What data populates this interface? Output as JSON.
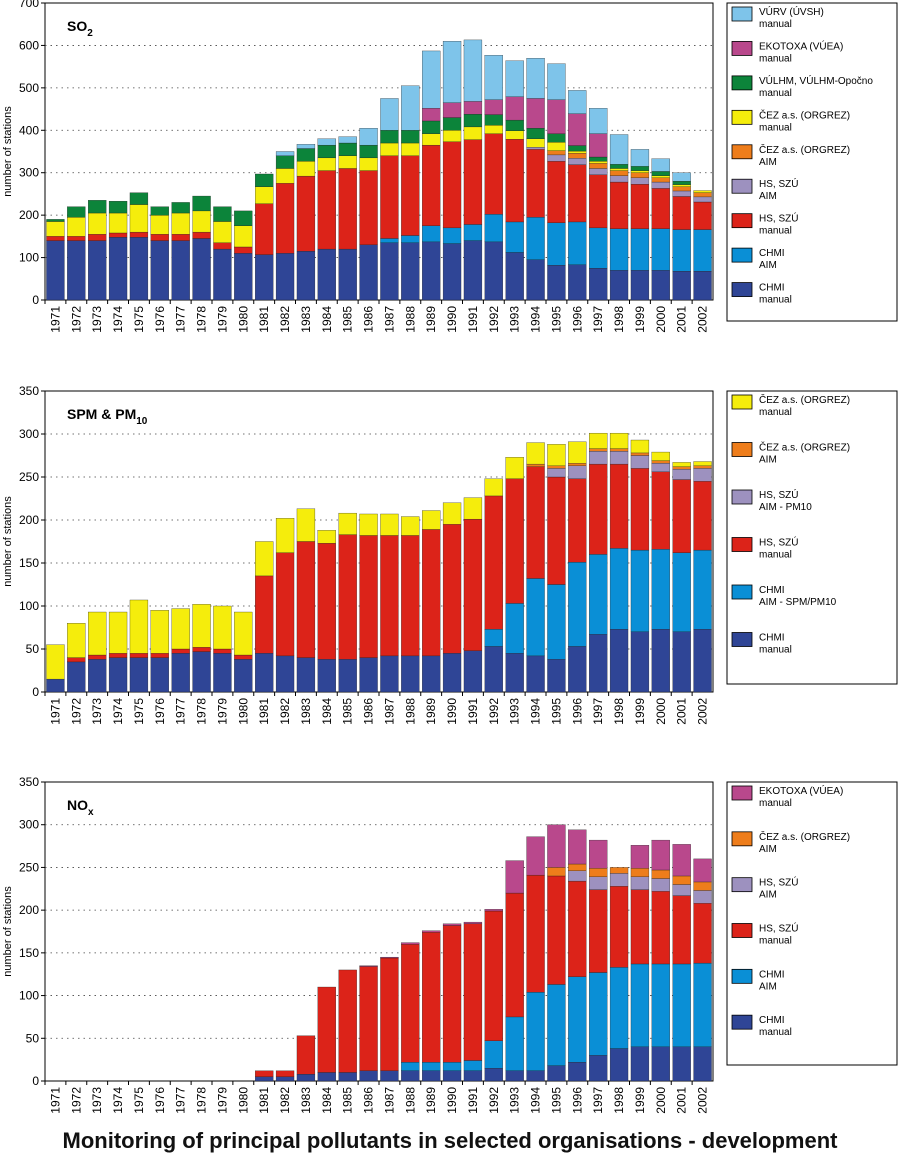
{
  "footer_title": "Monitoring of principal pollutants in selected organisations - development",
  "chart_data": [
    {
      "type": "bar",
      "stacked": true,
      "title": "SO2",
      "ylabel": "number of stations",
      "ylim": [
        0,
        700
      ],
      "yticks": [
        0,
        100,
        200,
        300,
        400,
        500,
        600,
        700
      ],
      "grid": true,
      "legend_position": "right",
      "categories": [
        "1971",
        "1972",
        "1973",
        "1974",
        "1975",
        "1976",
        "1977",
        "1978",
        "1979",
        "1980",
        "1981",
        "1982",
        "1983",
        "1984",
        "1985",
        "1986",
        "1987",
        "1988",
        "1989",
        "1990",
        "1991",
        "1992",
        "1993",
        "1994",
        "1995",
        "1996",
        "1997",
        "1998",
        "1999",
        "2000",
        "2001",
        "2002"
      ],
      "series": [
        {
          "name": "CHMI manual",
          "color": "#2f4596",
          "values": [
            140,
            140,
            140,
            148,
            148,
            140,
            140,
            145,
            120,
            110,
            107,
            110,
            115,
            120,
            120,
            130,
            135,
            135,
            137,
            133,
            140,
            137,
            112,
            95,
            82,
            83,
            75,
            70,
            70,
            70,
            68,
            68
          ]
        },
        {
          "name": "CHMI AIM",
          "color": "#0a8fd6",
          "values": [
            0,
            0,
            0,
            0,
            0,
            0,
            0,
            0,
            0,
            0,
            0,
            0,
            0,
            0,
            0,
            0,
            10,
            17,
            38,
            37,
            38,
            65,
            72,
            100,
            100,
            101,
            95,
            98,
            98,
            98,
            98,
            98
          ]
        },
        {
          "name": "HS, SZÚ manual",
          "color": "#dc2319",
          "values": [
            10,
            10,
            15,
            10,
            12,
            15,
            15,
            15,
            15,
            15,
            120,
            165,
            177,
            185,
            190,
            175,
            195,
            188,
            190,
            203,
            200,
            190,
            195,
            160,
            145,
            135,
            125,
            110,
            105,
            95,
            78,
            65
          ]
        },
        {
          "name": "HS, SZÚ AIM",
          "color": "#9d91bf",
          "values": [
            0,
            0,
            0,
            0,
            0,
            0,
            0,
            0,
            0,
            0,
            0,
            0,
            0,
            0,
            0,
            0,
            0,
            0,
            0,
            0,
            0,
            0,
            0,
            5,
            15,
            15,
            15,
            15,
            15,
            15,
            13,
            12
          ]
        },
        {
          "name": "ČEZ a.s. (ORGREZ) AIM",
          "color": "#ee7d1b",
          "values": [
            0,
            0,
            0,
            0,
            0,
            0,
            0,
            0,
            0,
            0,
            0,
            0,
            0,
            0,
            0,
            0,
            0,
            0,
            0,
            0,
            0,
            0,
            0,
            0,
            10,
            12,
            12,
            12,
            12,
            10,
            10,
            10
          ]
        },
        {
          "name": "ČEZ a.s. (ORGREZ) manual",
          "color": "#f5ed0c",
          "values": [
            35,
            45,
            50,
            47,
            65,
            45,
            50,
            50,
            50,
            50,
            40,
            35,
            35,
            30,
            30,
            30,
            30,
            30,
            27,
            27,
            30,
            20,
            20,
            20,
            20,
            5,
            5,
            5,
            5,
            5,
            5,
            5
          ]
        },
        {
          "name": "VÚLHM, VÚLHM-Opočno manual",
          "color": "#0c843a",
          "values": [
            5,
            25,
            30,
            28,
            28,
            20,
            25,
            35,
            35,
            35,
            30,
            30,
            30,
            30,
            30,
            30,
            30,
            30,
            30,
            30,
            30,
            25,
            25,
            25,
            20,
            13,
            10,
            10,
            10,
            10,
            8,
            0
          ]
        },
        {
          "name": "EKOTOXA (VÚEA) manual",
          "color": "#b9488c",
          "values": [
            0,
            0,
            0,
            0,
            0,
            0,
            0,
            0,
            0,
            0,
            0,
            0,
            0,
            0,
            0,
            0,
            0,
            0,
            30,
            35,
            30,
            35,
            55,
            70,
            80,
            75,
            55,
            0,
            0,
            0,
            0,
            0
          ]
        },
        {
          "name": "VÚRV (ÚVSH) manual",
          "color": "#7ec4ea",
          "values": [
            0,
            0,
            0,
            0,
            0,
            0,
            0,
            0,
            0,
            0,
            0,
            10,
            10,
            15,
            15,
            40,
            75,
            105,
            135,
            145,
            145,
            105,
            85,
            95,
            85,
            55,
            60,
            70,
            40,
            30,
            20,
            0
          ]
        }
      ]
    },
    {
      "type": "bar",
      "stacked": true,
      "title": "SPM & PM10",
      "ylabel": "number of stations",
      "ylim": [
        0,
        350
      ],
      "yticks": [
        0,
        50,
        100,
        150,
        200,
        250,
        300,
        350
      ],
      "grid": true,
      "legend_position": "right",
      "categories": [
        "1971",
        "1972",
        "1973",
        "1974",
        "1975",
        "1976",
        "1977",
        "1978",
        "1979",
        "1980",
        "1981",
        "1982",
        "1983",
        "1984",
        "1985",
        "1986",
        "1987",
        "1988",
        "1989",
        "1990",
        "1991",
        "1992",
        "1993",
        "1994",
        "1995",
        "1996",
        "1997",
        "1998",
        "1999",
        "2000",
        "2001",
        "2002"
      ],
      "series": [
        {
          "name": "CHMI manual",
          "color": "#2f4596",
          "values": [
            15,
            35,
            38,
            40,
            40,
            40,
            45,
            47,
            45,
            38,
            45,
            42,
            40,
            38,
            38,
            40,
            42,
            42,
            42,
            45,
            48,
            53,
            45,
            42,
            38,
            53,
            67,
            73,
            70,
            73,
            70,
            73
          ]
        },
        {
          "name": "CHMI AIM - SPM/PM10",
          "color": "#0a8fd6",
          "values": [
            0,
            0,
            0,
            0,
            0,
            0,
            0,
            0,
            0,
            0,
            0,
            0,
            0,
            0,
            0,
            0,
            0,
            0,
            0,
            0,
            0,
            20,
            58,
            90,
            87,
            98,
            93,
            94,
            95,
            93,
            92,
            92
          ]
        },
        {
          "name": "HS, SZÚ manual",
          "color": "#dc2319",
          "values": [
            0,
            5,
            5,
            5,
            5,
            5,
            5,
            5,
            5,
            5,
            90,
            120,
            135,
            135,
            145,
            142,
            140,
            140,
            147,
            150,
            153,
            155,
            145,
            130,
            125,
            97,
            105,
            98,
            95,
            90,
            85,
            80
          ]
        },
        {
          "name": "HS, SZÚ AIM - PM10",
          "color": "#9d91bf",
          "values": [
            0,
            0,
            0,
            0,
            0,
            0,
            0,
            0,
            0,
            0,
            0,
            0,
            0,
            0,
            0,
            0,
            0,
            0,
            0,
            0,
            0,
            0,
            0,
            0,
            10,
            15,
            15,
            15,
            15,
            10,
            12,
            15
          ]
        },
        {
          "name": "ČEZ a.s. (ORGREZ) AIM",
          "color": "#ee7d1b",
          "values": [
            0,
            0,
            0,
            0,
            0,
            0,
            0,
            0,
            0,
            0,
            0,
            0,
            0,
            0,
            0,
            0,
            0,
            0,
            0,
            0,
            0,
            0,
            0,
            3,
            3,
            3,
            3,
            3,
            3,
            3,
            3,
            3
          ]
        },
        {
          "name": "ČEZ a.s. (ORGREZ) manual",
          "color": "#f5ed0c",
          "values": [
            40,
            40,
            50,
            48,
            62,
            50,
            47,
            50,
            50,
            50,
            40,
            40,
            38,
            15,
            25,
            25,
            25,
            22,
            22,
            25,
            25,
            20,
            25,
            25,
            25,
            25,
            18,
            18,
            15,
            10,
            5,
            5
          ]
        }
      ]
    },
    {
      "type": "bar",
      "stacked": true,
      "title": "NOx",
      "ylabel": "number of stations",
      "ylim": [
        0,
        350
      ],
      "yticks": [
        0,
        50,
        100,
        150,
        200,
        250,
        300,
        350
      ],
      "grid": true,
      "legend_position": "right",
      "categories": [
        "1971",
        "1972",
        "1973",
        "1974",
        "1975",
        "1976",
        "1977",
        "1978",
        "1979",
        "1980",
        "1981",
        "1982",
        "1983",
        "1984",
        "1985",
        "1986",
        "1987",
        "1988",
        "1989",
        "1990",
        "1991",
        "1992",
        "1993",
        "1994",
        "1995",
        "1996",
        "1997",
        "1998",
        "1999",
        "2000",
        "2001",
        "2002"
      ],
      "series": [
        {
          "name": "CHMI manual",
          "color": "#2f4596",
          "values": [
            0,
            0,
            0,
            0,
            0,
            0,
            0,
            0,
            0,
            0,
            5,
            5,
            8,
            10,
            10,
            12,
            12,
            12,
            12,
            12,
            12,
            15,
            12,
            12,
            18,
            22,
            30,
            38,
            40,
            40,
            40,
            40
          ]
        },
        {
          "name": "CHMI AIM",
          "color": "#0a8fd6",
          "values": [
            0,
            0,
            0,
            0,
            0,
            0,
            0,
            0,
            0,
            0,
            0,
            0,
            0,
            0,
            0,
            0,
            0,
            10,
            10,
            10,
            12,
            32,
            63,
            92,
            95,
            100,
            97,
            95,
            97,
            97,
            97,
            98
          ]
        },
        {
          "name": "HS, SZÚ manual",
          "color": "#dc2319",
          "values": [
            0,
            0,
            0,
            0,
            0,
            0,
            0,
            0,
            0,
            0,
            7,
            7,
            45,
            100,
            120,
            122,
            132,
            138,
            152,
            160,
            160,
            152,
            145,
            137,
            127,
            112,
            97,
            95,
            87,
            85,
            80,
            70
          ]
        },
        {
          "name": "HS, SZÚ AIM",
          "color": "#9d91bf",
          "values": [
            0,
            0,
            0,
            0,
            0,
            0,
            0,
            0,
            0,
            0,
            0,
            0,
            0,
            0,
            0,
            0,
            0,
            0,
            0,
            0,
            0,
            0,
            0,
            0,
            0,
            12,
            15,
            15,
            15,
            15,
            13,
            15
          ]
        },
        {
          "name": "ČEZ a.s. (ORGREZ) AIM",
          "color": "#ee7d1b",
          "values": [
            0,
            0,
            0,
            0,
            0,
            0,
            0,
            0,
            0,
            0,
            0,
            0,
            0,
            0,
            0,
            0,
            0,
            0,
            0,
            0,
            0,
            0,
            0,
            0,
            10,
            8,
            10,
            7,
            10,
            10,
            10,
            10
          ]
        },
        {
          "name": "EKOTOXA (VÚEA) manual",
          "color": "#b9488c",
          "values": [
            0,
            0,
            0,
            0,
            0,
            0,
            0,
            0,
            0,
            0,
            0,
            0,
            0,
            0,
            0,
            1,
            1,
            2,
            2,
            2,
            2,
            2,
            38,
            45,
            50,
            40,
            33,
            0,
            27,
            35,
            37,
            27
          ]
        }
      ]
    }
  ]
}
